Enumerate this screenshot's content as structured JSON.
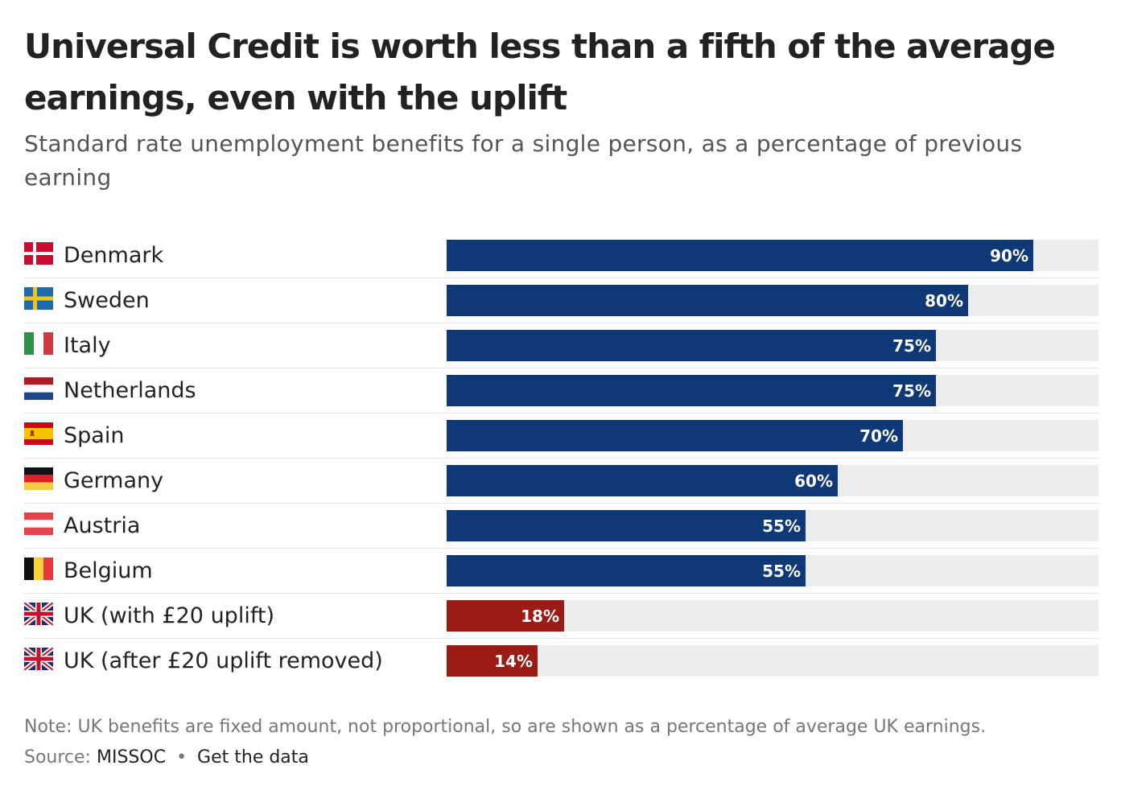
{
  "title": "Universal Credit is worth less than a fifth of the average earnings, even with the uplift",
  "subtitle": "Standard rate unemployment benefits for a single person, as a percentage of previous earning",
  "chart_data": {
    "type": "bar",
    "orientation": "horizontal",
    "categories": [
      "Denmark",
      "Sweden",
      "Italy",
      "Netherlands",
      "Spain",
      "Germany",
      "Austria",
      "Belgium",
      "UK (with £20 uplift)",
      "UK (after £20 uplift removed)"
    ],
    "values": [
      90,
      80,
      75,
      75,
      70,
      60,
      55,
      55,
      18,
      14
    ],
    "value_labels": [
      "90%",
      "80%",
      "75%",
      "75%",
      "70%",
      "60%",
      "55%",
      "55%",
      "18%",
      "14%"
    ],
    "flags": [
      "denmark-flag-icon",
      "sweden-flag-icon",
      "italy-flag-icon",
      "netherlands-flag-icon",
      "spain-flag-icon",
      "germany-flag-icon",
      "austria-flag-icon",
      "belgium-flag-icon",
      "uk-flag-icon",
      "uk-flag-icon"
    ],
    "bar_colors": [
      "#0f3877",
      "#0f3877",
      "#0f3877",
      "#0f3877",
      "#0f3877",
      "#0f3877",
      "#0f3877",
      "#0f3877",
      "#9b1c14",
      "#9b1c14"
    ],
    "track_color": "#ececec",
    "xlim": [
      0,
      100
    ],
    "grid": false,
    "legend": "none"
  },
  "note": "Note: UK benefits are fixed amount, not proportional, so are shown as a percentage of average UK earnings.",
  "source": {
    "prefix": "Source:",
    "name": "MISSOC",
    "separator": "•",
    "link_label": "Get the data"
  }
}
